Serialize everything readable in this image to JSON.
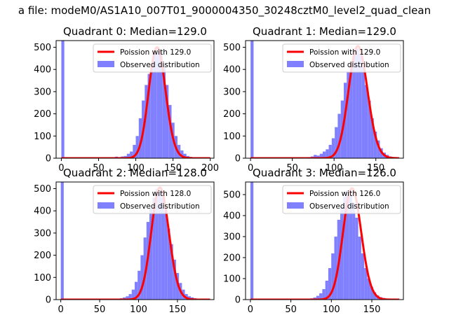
{
  "figure": {
    "suptitle": "a file: modeM0/AS1A10_007T01_9000004350_30248cztM0_level2_quad_clean"
  },
  "colors": {
    "histogram": "#8080ff",
    "poisson": "#ff0000",
    "axis": "#000000"
  },
  "chart_data": [
    {
      "type": "bar",
      "title": "Quadrant 0: Median=129.0",
      "median": 129.0,
      "xlim": [
        -7,
        205
      ],
      "ylim": [
        0,
        530
      ],
      "xticks": [
        0,
        50,
        100,
        150,
        200
      ],
      "yticks": [
        0,
        100,
        200,
        300,
        400,
        500
      ],
      "xtick_labels": [
        "0",
        "50",
        "100",
        "150",
        "200"
      ],
      "ytick_labels": [
        "0",
        "100",
        "200",
        "300",
        "400",
        "500"
      ],
      "bin_width": 4,
      "hist_x": [
        0,
        4,
        8,
        12,
        16,
        20,
        24,
        28,
        32,
        36,
        40,
        44,
        48,
        52,
        56,
        60,
        64,
        68,
        72,
        76,
        80,
        84,
        88,
        92,
        96,
        100,
        104,
        108,
        112,
        116,
        120,
        124,
        128,
        132,
        136,
        140,
        144,
        148,
        152,
        156,
        160,
        164,
        168,
        172,
        176,
        180,
        184,
        188,
        192
      ],
      "hist_counts": [
        530,
        5,
        2,
        2,
        3,
        2,
        2,
        1,
        2,
        3,
        2,
        2,
        3,
        2,
        2,
        3,
        2,
        3,
        7,
        5,
        8,
        10,
        20,
        30,
        60,
        100,
        180,
        260,
        330,
        380,
        420,
        470,
        490,
        480,
        420,
        330,
        240,
        160,
        100,
        60,
        35,
        20,
        10,
        6,
        4,
        3,
        2,
        3,
        2
      ],
      "poisson_lambda": 129.0,
      "poisson_scale": 500,
      "poisson_label": "Poission with 129.0",
      "hist_label": "Observed distribution"
    },
    {
      "type": "bar",
      "title": "Quadrant 1: Median=129.0",
      "median": 129.0,
      "xlim": [
        -6,
        183
      ],
      "ylim": [
        0,
        530
      ],
      "xticks": [
        0,
        50,
        100,
        150
      ],
      "yticks": [
        0,
        100,
        200,
        300,
        400,
        500
      ],
      "xtick_labels": [
        "0",
        "50",
        "100",
        "150"
      ],
      "ytick_labels": [
        "0",
        "100",
        "200",
        "300",
        "400",
        "500"
      ],
      "bin_width": 3.6,
      "hist_x": [
        0,
        3.6,
        7.2,
        10.8,
        14.4,
        18,
        21.6,
        25.2,
        28.8,
        32.4,
        36,
        39.6,
        43.2,
        46.8,
        50.4,
        54,
        57.6,
        61.2,
        64.8,
        68.4,
        72,
        75.6,
        79.2,
        82.8,
        86.4,
        90,
        93.6,
        97.2,
        100.8,
        104.4,
        108,
        111.6,
        115.2,
        118.8,
        122.4,
        126,
        129.6,
        133.2,
        136.8,
        140.4,
        144,
        147.6,
        151.2,
        154.8,
        158.4,
        162,
        165.6,
        169.2,
        172.8
      ],
      "hist_counts": [
        530,
        4,
        2,
        2,
        2,
        2,
        2,
        2,
        2,
        2,
        2,
        3,
        2,
        2,
        2,
        2,
        2,
        3,
        3,
        5,
        8,
        15,
        12,
        20,
        30,
        40,
        60,
        90,
        140,
        200,
        260,
        340,
        390,
        430,
        470,
        495,
        470,
        420,
        330,
        260,
        180,
        120,
        80,
        45,
        25,
        15,
        8,
        5,
        3
      ],
      "poisson_lambda": 129.0,
      "poisson_scale": 505,
      "poisson_label": "Poission with 129.0",
      "hist_label": "Observed distribution"
    },
    {
      "type": "bar",
      "title": "Quadrant 2: Median=128.0",
      "median": 128.0,
      "xlim": [
        -6,
        197
      ],
      "ylim": [
        0,
        530
      ],
      "xticks": [
        0,
        50,
        100,
        150
      ],
      "yticks": [
        0,
        100,
        200,
        300,
        400,
        500
      ],
      "xtick_labels": [
        "0",
        "50",
        "100",
        "150"
      ],
      "ytick_labels": [
        "0",
        "100",
        "200",
        "300",
        "400",
        "500"
      ],
      "bin_width": 3.8,
      "hist_x": [
        0,
        3.8,
        7.6,
        11.4,
        15.2,
        19,
        22.8,
        26.6,
        30.4,
        34.2,
        38,
        41.8,
        45.6,
        49.4,
        53.2,
        57,
        60.8,
        64.6,
        68.4,
        72.2,
        76,
        79.8,
        83.6,
        87.4,
        91.2,
        95,
        98.8,
        102.6,
        106.4,
        110.2,
        114,
        117.8,
        121.6,
        125.4,
        129.2,
        133,
        136.8,
        140.6,
        144.4,
        148.2,
        152,
        155.8,
        159.6,
        163.4,
        167.2,
        171,
        174.8,
        178.6,
        182.4
      ],
      "hist_counts": [
        530,
        4,
        2,
        2,
        2,
        2,
        2,
        2,
        2,
        2,
        2,
        2,
        2,
        2,
        2,
        2,
        2,
        2,
        3,
        4,
        6,
        10,
        15,
        25,
        45,
        80,
        130,
        200,
        280,
        350,
        410,
        460,
        500,
        490,
        460,
        400,
        320,
        250,
        180,
        120,
        75,
        45,
        25,
        15,
        10,
        6,
        4,
        3,
        2
      ],
      "poisson_lambda": 128.0,
      "poisson_scale": 505,
      "poisson_label": "Poission with 128.0",
      "hist_label": "Observed distribution"
    },
    {
      "type": "bar",
      "title": "Quadrant 3: Median=126.0",
      "median": 126.0,
      "xlim": [
        -6,
        189
      ],
      "ylim": [
        0,
        560
      ],
      "xticks": [
        0,
        50,
        100,
        150
      ],
      "yticks": [
        0,
        100,
        200,
        300,
        400,
        500
      ],
      "xtick_labels": [
        "0",
        "50",
        "100",
        "150"
      ],
      "ytick_labels": [
        "0",
        "100",
        "200",
        "300",
        "400",
        "500"
      ],
      "bin_width": 3.7,
      "hist_x": [
        0,
        3.7,
        7.4,
        11.1,
        14.8,
        18.5,
        22.2,
        25.9,
        29.6,
        33.3,
        37,
        40.7,
        44.4,
        48.1,
        51.8,
        55.5,
        59.2,
        62.9,
        66.6,
        70.3,
        74,
        77.7,
        81.4,
        85.1,
        88.8,
        92.5,
        96.2,
        99.9,
        103.6,
        107.3,
        111,
        114.7,
        118.4,
        122.1,
        125.8,
        129.5,
        133.2,
        136.9,
        140.6,
        144.3,
        148,
        151.7,
        155.4,
        159.1,
        162.8,
        166.5,
        170.2,
        173.9,
        177.6
      ],
      "hist_counts": [
        560,
        4,
        2,
        2,
        2,
        2,
        2,
        2,
        2,
        2,
        2,
        2,
        2,
        2,
        2,
        2,
        2,
        2,
        3,
        4,
        6,
        10,
        18,
        30,
        50,
        90,
        150,
        220,
        300,
        380,
        440,
        490,
        520,
        500,
        460,
        390,
        300,
        220,
        150,
        100,
        60,
        35,
        20,
        12,
        8,
        5,
        3,
        2,
        2
      ],
      "poisson_lambda": 126.0,
      "poisson_scale": 530,
      "poisson_label": "Poission with 126.0",
      "hist_label": "Observed distribution"
    }
  ]
}
